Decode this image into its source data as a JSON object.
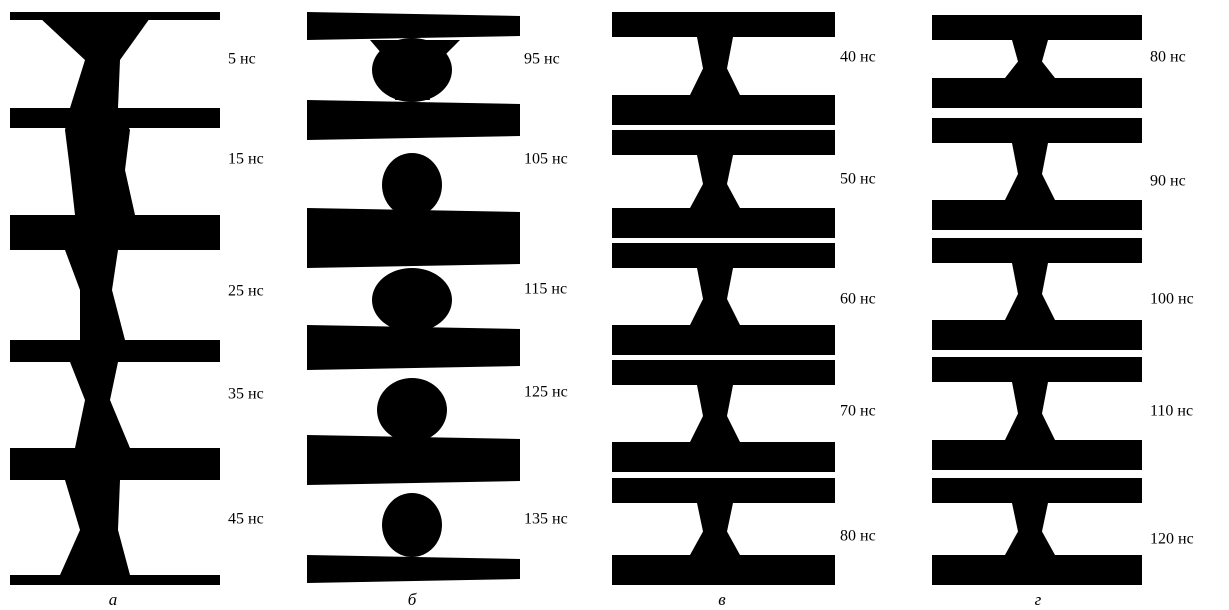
{
  "panels": [
    {
      "label": "а",
      "frames": [
        "5 нс",
        "15 нс",
        "25 нс",
        "35 нс",
        "45 нс"
      ]
    },
    {
      "label": "б",
      "frames": [
        "95 нс",
        "105 нс",
        "115 нс",
        "125 нс",
        "135 нс"
      ]
    },
    {
      "label": "в",
      "frames": [
        "40 нс",
        "50 нс",
        "60 нс",
        "70 нс",
        "80 нс"
      ]
    },
    {
      "label": "г",
      "frames": [
        "80 нс",
        "90 нс",
        "100 нс",
        "110 нс",
        "120 нс"
      ]
    }
  ]
}
